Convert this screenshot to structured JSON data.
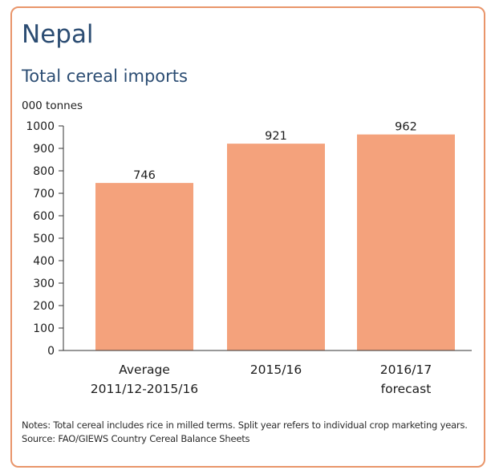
{
  "title": "Nepal",
  "subtitle": "Total cereal imports",
  "unit": "000 tonnes",
  "notes": "Notes: Total cereal includes rice in milled terms. Split year refers to individual crop marketing years.",
  "source": "Source: FAO/GIEWS Country Cereal Balance Sheets",
  "colors": {
    "bar": "#f4a27c",
    "frame": "#e9956a",
    "title": "#2c4d73"
  },
  "chart_data": {
    "type": "bar",
    "categories": [
      [
        "Average",
        "2011/12-2015/16"
      ],
      [
        "2015/16"
      ],
      [
        "2016/17",
        "forecast"
      ]
    ],
    "values": [
      746,
      921,
      962
    ],
    "data_labels": [
      "746",
      "921",
      "962"
    ],
    "ylim": [
      0,
      1000
    ],
    "yticks": [
      0,
      100,
      200,
      300,
      400,
      500,
      600,
      700,
      800,
      900,
      1000
    ],
    "grid": false,
    "ylabel": "000 tonnes"
  }
}
